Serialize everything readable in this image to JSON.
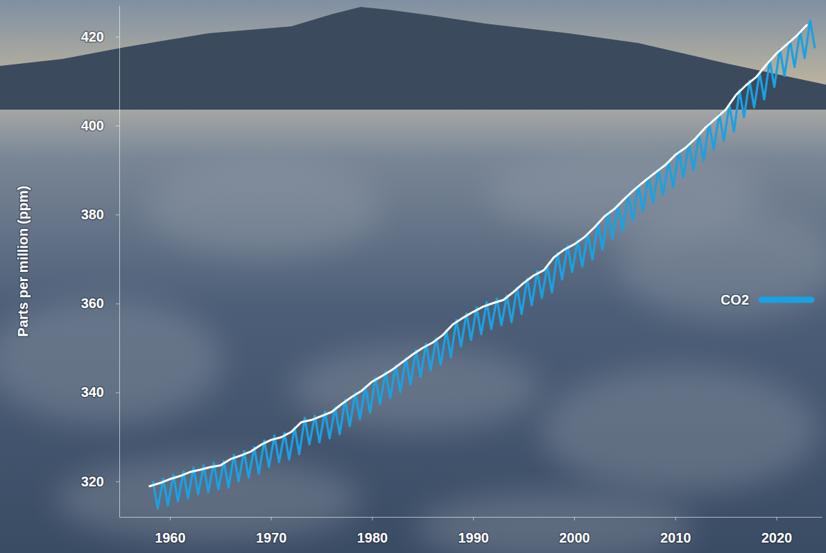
{
  "chart_data": {
    "type": "line",
    "y_label": "Parts per million (ppm)",
    "xlim": [
      1955,
      2024.5
    ],
    "xticks": [
      1960,
      1970,
      1980,
      1990,
      2000,
      2010,
      2020
    ],
    "ylim": [
      312,
      427
    ],
    "yticks": [
      320,
      340,
      360,
      380,
      400,
      420
    ],
    "grid": false,
    "legend": "right",
    "series": [
      {
        "name": "CO2",
        "color": "#1ba1e2",
        "x": [
          1958.35,
          1958.8,
          1959.35,
          1959.8,
          1960.35,
          1960.8,
          1961.35,
          1961.8,
          1962.35,
          1962.8,
          1963.35,
          1963.8,
          1964.35,
          1964.8,
          1965.35,
          1965.8,
          1966.35,
          1966.8,
          1967.35,
          1967.8,
          1968.35,
          1968.8,
          1969.35,
          1969.8,
          1970.35,
          1970.8,
          1971.35,
          1971.8,
          1972.35,
          1972.8,
          1973.35,
          1973.8,
          1974.35,
          1974.8,
          1975.35,
          1975.8,
          1976.35,
          1976.8,
          1977.35,
          1977.8,
          1978.35,
          1978.8,
          1979.35,
          1979.8,
          1980.35,
          1980.8,
          1981.35,
          1981.8,
          1982.35,
          1982.8,
          1983.35,
          1983.8,
          1984.35,
          1984.8,
          1985.35,
          1985.8,
          1986.35,
          1986.8,
          1987.35,
          1987.8,
          1988.35,
          1988.8,
          1989.35,
          1989.8,
          1990.35,
          1990.8,
          1991.35,
          1991.8,
          1992.35,
          1992.8,
          1993.35,
          1993.8,
          1994.35,
          1994.8,
          1995.35,
          1995.8,
          1996.35,
          1996.8,
          1997.35,
          1997.8,
          1998.35,
          1998.8,
          1999.35,
          1999.8,
          2000.35,
          2000.8,
          2001.35,
          2001.8,
          2002.35,
          2002.8,
          2003.35,
          2003.8,
          2004.35,
          2004.8,
          2005.35,
          2005.8,
          2006.35,
          2006.8,
          2007.35,
          2007.8,
          2008.35,
          2008.8,
          2009.35,
          2009.8,
          2010.35,
          2010.8,
          2011.35,
          2011.8,
          2012.35,
          2012.8,
          2013.35,
          2013.8,
          2014.35,
          2014.8,
          2015.35,
          2015.8,
          2016.35,
          2016.8,
          2017.35,
          2017.8,
          2018.35,
          2018.8,
          2019.35,
          2019.8,
          2020.35,
          2020.8,
          2021.35,
          2021.8,
          2022.35,
          2022.8,
          2023.35,
          2023.8
        ],
        "values": [
          319.9,
          313.9,
          320.6,
          314.6,
          321.5,
          315.5,
          322.2,
          316.2,
          323.1,
          317.1,
          323.6,
          317.6,
          324.2,
          318.2,
          324.6,
          318.6,
          326.0,
          320.0,
          326.8,
          320.8,
          327.7,
          321.7,
          329.2,
          323.2,
          330.3,
          324.3,
          330.9,
          324.9,
          332.1,
          326.1,
          334.3,
          328.3,
          334.8,
          328.8,
          335.7,
          329.7,
          336.6,
          330.6,
          338.4,
          332.4,
          340.0,
          334.0,
          341.4,
          335.4,
          343.4,
          337.4,
          344.7,
          338.7,
          346.1,
          340.1,
          347.8,
          341.8,
          349.5,
          343.5,
          351.0,
          345.0,
          352.2,
          346.2,
          353.9,
          347.9,
          356.3,
          350.3,
          357.8,
          351.8,
          359.1,
          353.1,
          360.3,
          354.3,
          361.1,
          355.1,
          361.8,
          355.8,
          363.6,
          357.6,
          365.6,
          359.6,
          367.3,
          361.3,
          368.5,
          362.5,
          371.4,
          365.4,
          373.1,
          367.1,
          374.3,
          368.3,
          375.9,
          369.9,
          378.1,
          372.1,
          380.6,
          374.6,
          382.3,
          376.3,
          384.6,
          378.6,
          386.7,
          380.7,
          388.6,
          382.6,
          390.4,
          384.4,
          392.1,
          386.1,
          394.4,
          388.4,
          396.0,
          390.0,
          398.1,
          392.1,
          400.6,
          394.6,
          402.6,
          396.6,
          404.6,
          398.6,
          407.9,
          401.9,
          410.1,
          404.1,
          411.9,
          405.9,
          414.7,
          408.7,
          417.2,
          411.2,
          419.2,
          413.2,
          421.2,
          415.2,
          423.6,
          417.6
        ]
      },
      {
        "color": "#ffffff",
        "x": [
          1958,
          1959,
          1960,
          1961,
          1962,
          1963,
          1964,
          1965,
          1966,
          1967,
          1968,
          1969,
          1970,
          1971,
          1972,
          1973,
          1974,
          1975,
          1976,
          1977,
          1978,
          1979,
          1980,
          1981,
          1982,
          1983,
          1984,
          1985,
          1986,
          1987,
          1988,
          1989,
          1990,
          1991,
          1992,
          1993,
          1994,
          1995,
          1996,
          1997,
          1998,
          1999,
          2000,
          2001,
          2002,
          2003,
          2004,
          2005,
          2006,
          2007,
          2008,
          2009,
          2010,
          2011,
          2012,
          2013,
          2014,
          2015,
          2016,
          2017,
          2018,
          2019,
          2020,
          2021,
          2022,
          2023
        ],
        "values": [
          318.9,
          319.6,
          320.5,
          321.2,
          322.1,
          322.6,
          323.2,
          323.6,
          325.0,
          325.8,
          326.7,
          328.2,
          329.3,
          329.9,
          331.1,
          333.3,
          333.8,
          334.7,
          335.6,
          337.4,
          339.0,
          340.4,
          342.4,
          343.7,
          345.1,
          346.8,
          348.5,
          350.0,
          351.2,
          352.9,
          355.3,
          356.8,
          358.1,
          359.3,
          360.1,
          360.8,
          362.6,
          364.6,
          366.3,
          367.5,
          370.4,
          372.1,
          373.3,
          374.9,
          377.1,
          379.6,
          381.3,
          383.6,
          385.7,
          387.6,
          389.4,
          391.1,
          393.4,
          395.0,
          397.1,
          399.6,
          401.6,
          403.6,
          406.9,
          409.1,
          410.9,
          413.7,
          416.2,
          418.2,
          420.2,
          422.6
        ]
      }
    ]
  }
}
